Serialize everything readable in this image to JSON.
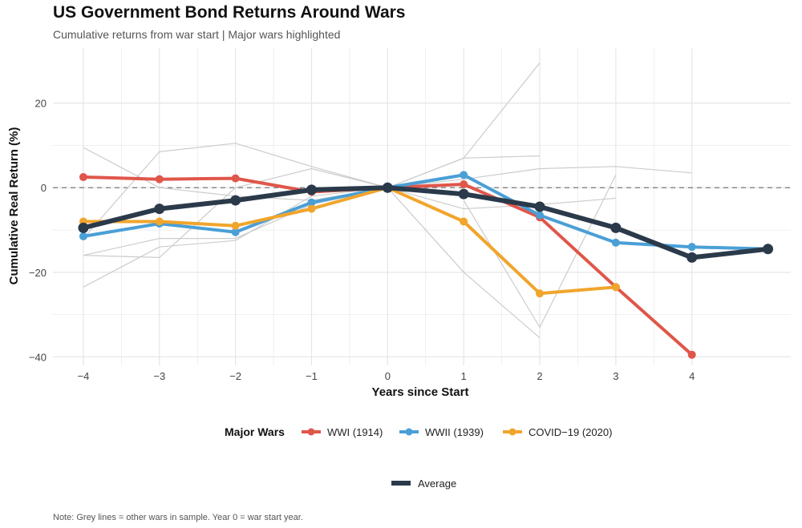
{
  "chart_data": {
    "type": "line",
    "title": "US Government Bond Returns Around Wars",
    "subtitle": "Cumulative returns from war start | Major wars highlighted",
    "xlabel": "Years since Start",
    "ylabel": "Cumulative Real Return (%)",
    "xlim": [
      -4.4,
      5.3
    ],
    "ylim": [
      -42,
      33
    ],
    "x_ticks": [
      -4,
      -3,
      -2,
      -1,
      0,
      1,
      2,
      3,
      4
    ],
    "x_tick_labels": [
      "−4",
      "−3",
      "−2",
      "−1",
      "0",
      "1",
      "2",
      "3",
      "4"
    ],
    "y_ticks": [
      -40,
      -20,
      0,
      20
    ],
    "y_tick_labels": [
      "−40",
      "−20",
      "0",
      "20"
    ],
    "reference_line": 0,
    "grey_series": [
      {
        "x": [
          -4,
          -3,
          -2,
          -1,
          0,
          1,
          2
        ],
        "y": [
          9.5,
          0,
          -2,
          -3,
          0,
          -20,
          -35.5
        ]
      },
      {
        "x": [
          -4,
          -3,
          -2,
          -1,
          0,
          1,
          2
        ],
        "y": [
          -16,
          -12,
          -12,
          -4,
          0,
          7,
          29.5
        ]
      },
      {
        "x": [
          -4,
          -3,
          -2,
          -1,
          0,
          1,
          2
        ],
        "y": [
          -12,
          8.5,
          10.5,
          5,
          0,
          7,
          7.5
        ]
      },
      {
        "x": [
          -4,
          -3,
          -2,
          -1,
          0,
          1,
          2,
          3,
          4
        ],
        "y": [
          -23.5,
          -14,
          -12.5,
          -2,
          0,
          2,
          4.5,
          5,
          3.5
        ]
      },
      {
        "x": [
          -4,
          -3,
          -2,
          -1,
          0,
          1,
          2,
          3
        ],
        "y": [
          -16,
          -16.5,
          0,
          4.5,
          0,
          -5,
          -4,
          -2.5
        ]
      },
      {
        "x": [
          1,
          2,
          3
        ],
        "y": [
          -3,
          -33,
          3
        ]
      }
    ],
    "series": [
      {
        "name": "WWI (1914)",
        "color": "#e0564a",
        "x": [
          -4,
          -3,
          -2,
          -1,
          0,
          1,
          2,
          3,
          4
        ],
        "y": [
          2.5,
          2,
          2.2,
          -1,
          0,
          0.8,
          -7,
          -23.5,
          -39.5
        ]
      },
      {
        "name": "WWII (1939)",
        "color": "#4a9fd6",
        "x": [
          -4,
          -3,
          -2,
          -1,
          0,
          1,
          2,
          3,
          4,
          5
        ],
        "y": [
          -11.5,
          -8.5,
          -10.5,
          -3.5,
          0,
          3,
          -6.5,
          -13,
          -14,
          -14.5
        ]
      },
      {
        "name": "COVID−19 (2020)",
        "color": "#f0a52c",
        "x": [
          -4,
          -3,
          -2,
          -1,
          0,
          1,
          2,
          3
        ],
        "y": [
          -8,
          -8,
          -9,
          -5,
          0,
          -8,
          -25,
          -23.5
        ]
      }
    ],
    "average": {
      "name": "Average",
      "color": "#2b3a4a",
      "x": [
        -4,
        -3,
        -2,
        -1,
        0,
        1,
        2,
        3,
        4,
        5
      ],
      "y": [
        -9.5,
        -5,
        -3,
        -0.5,
        0,
        -1.5,
        -4.5,
        -9.5,
        -16.5,
        -14.5
      ]
    },
    "legend_title": "Major Wars",
    "legend_position": "bottom",
    "note": "Note: Grey lines = other wars in sample. Year 0 = war start year.",
    "colors": {
      "grid": "#e6e6e6",
      "grey_line": "#cccccc",
      "zero_line": "#777777"
    }
  }
}
